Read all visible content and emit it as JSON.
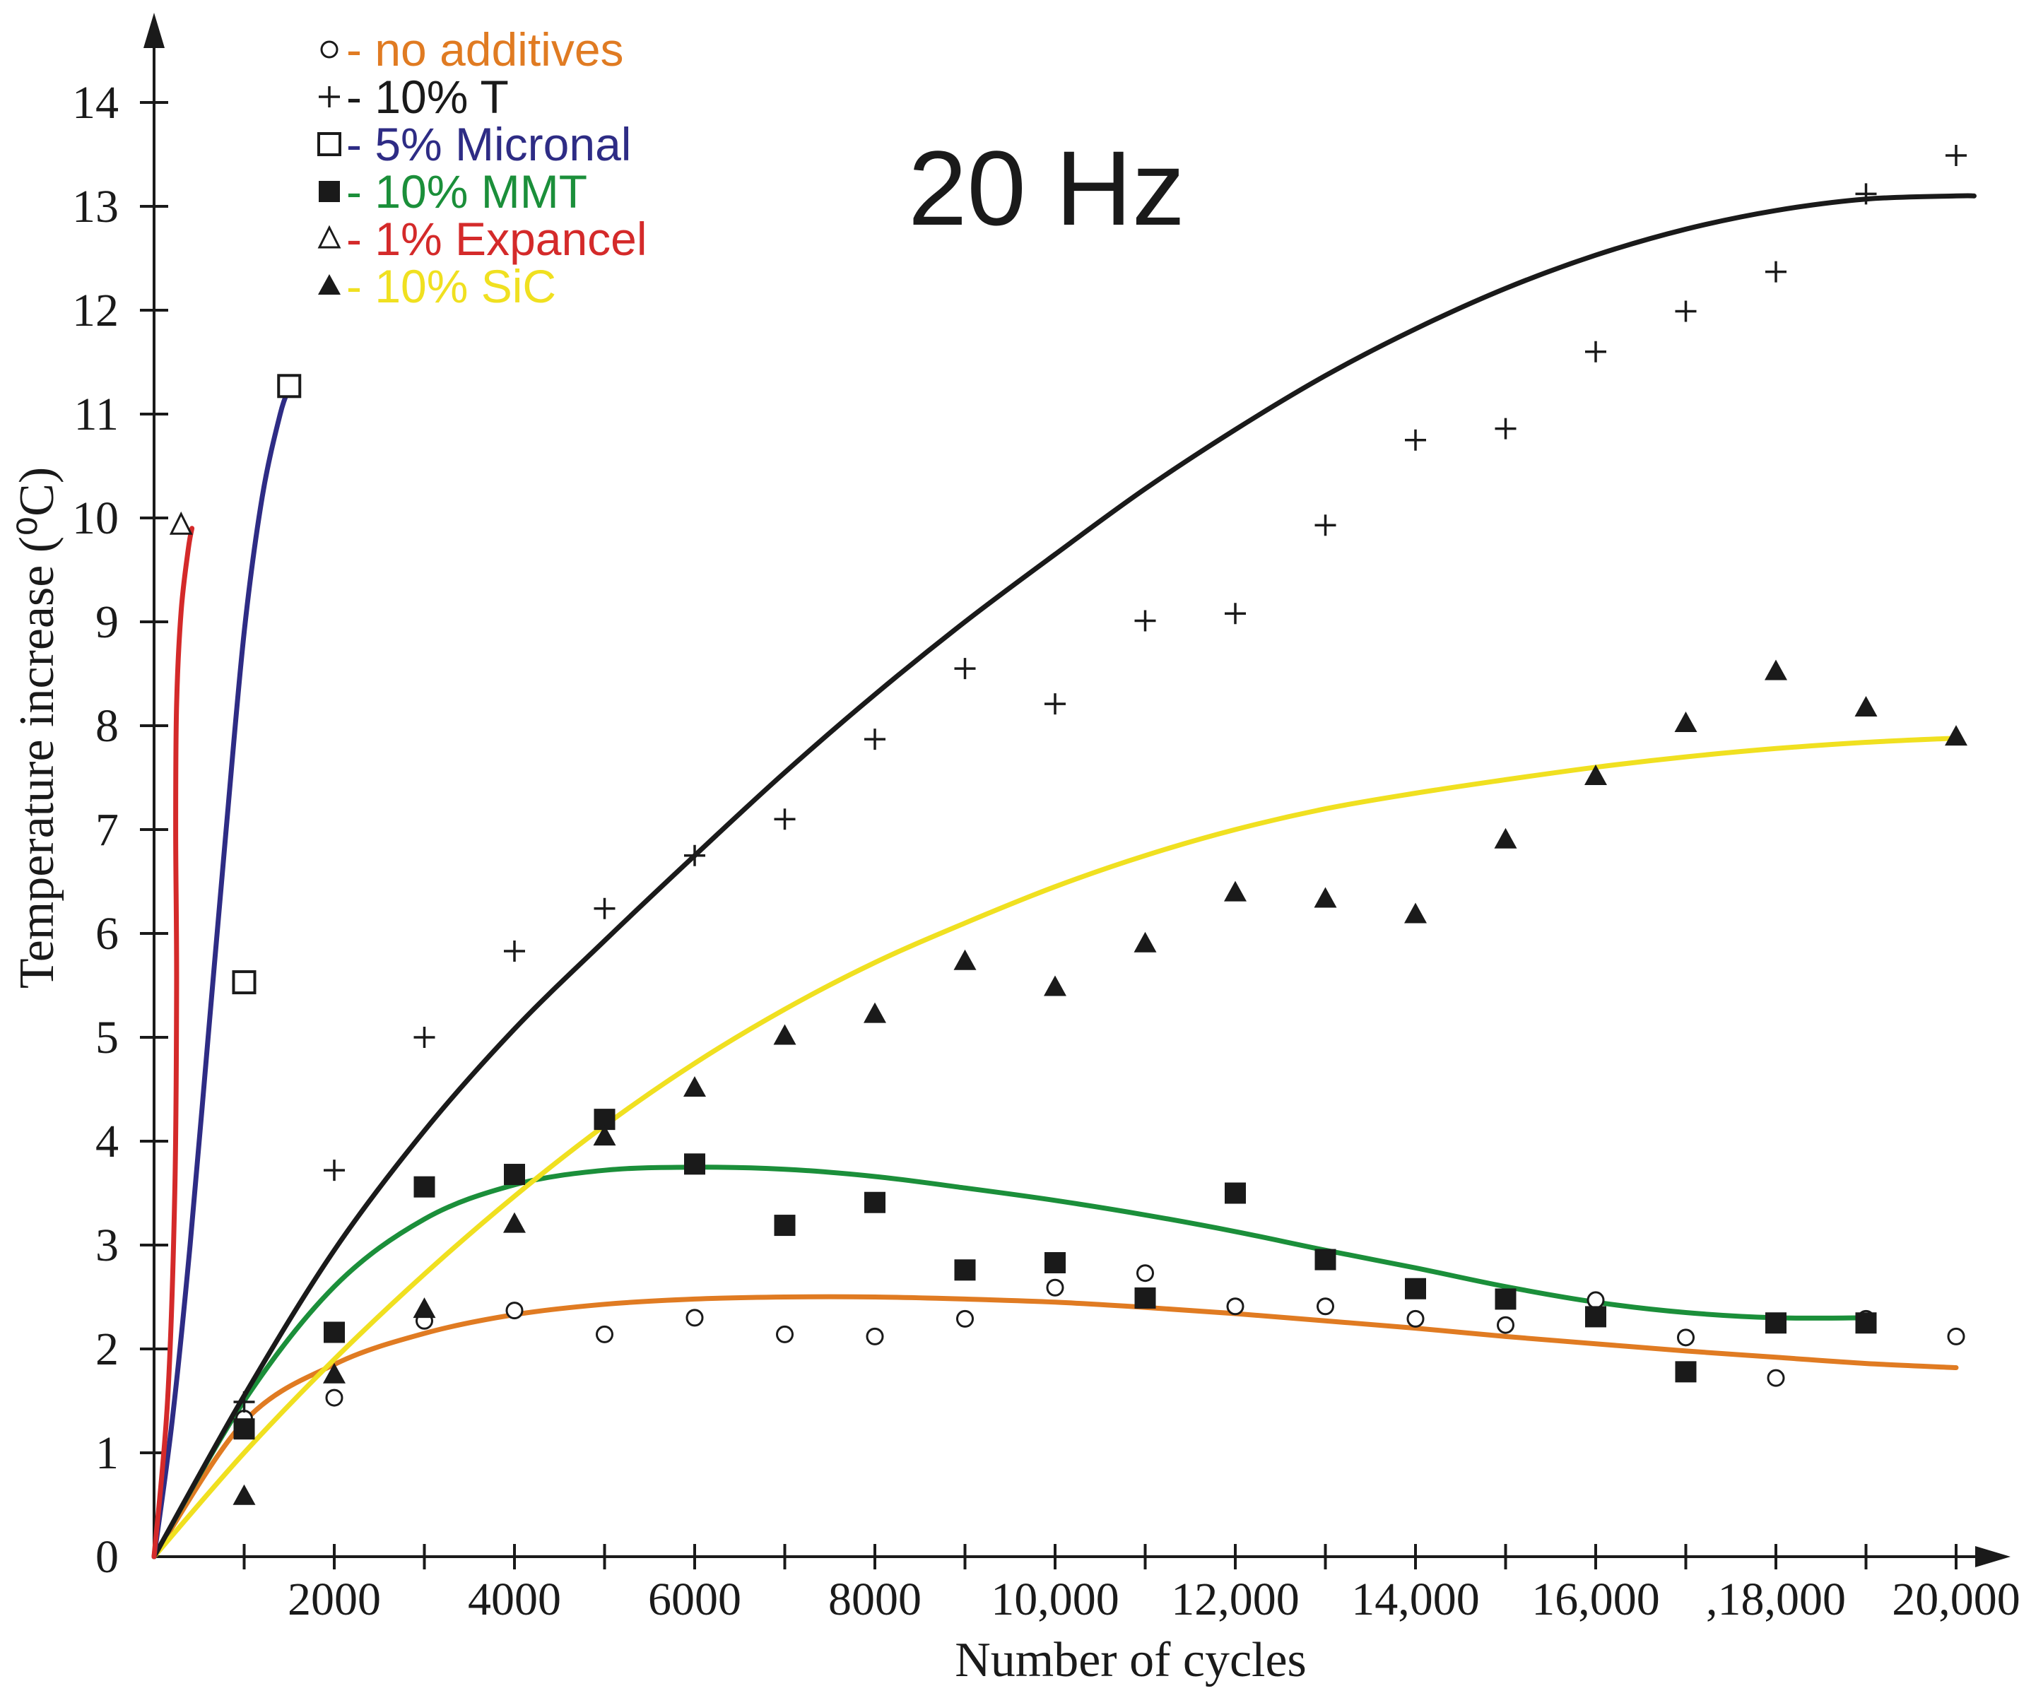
{
  "chart_data": {
    "type": "scatter",
    "title": "20 Hz",
    "xlabel": "Number of cycles",
    "ylabel": "Temperature increase (⁰C)",
    "xlim": [
      0,
      21000
    ],
    "ylim": [
      0,
      15
    ],
    "x_ticks": [
      {
        "value": 2000,
        "label": "2000"
      },
      {
        "value": 4000,
        "label": "4000"
      },
      {
        "value": 6000,
        "label": "6000"
      },
      {
        "value": 8000,
        "label": "8000"
      },
      {
        "value": 10000,
        "label": "10,000"
      },
      {
        "value": 12000,
        "label": "12,000"
      },
      {
        "value": 14000,
        "label": "14,000"
      },
      {
        "value": 16000,
        "label": "16,000"
      },
      {
        "value": 18000,
        "label": ",18,000"
      },
      {
        "value": 20000,
        "label": "20,000"
      }
    ],
    "x_minor_ticks": [
      1000,
      3000,
      5000,
      7000,
      9000,
      11000,
      13000,
      15000,
      17000,
      19000
    ],
    "y_ticks": [
      0,
      1,
      2,
      3,
      4,
      5,
      6,
      7,
      8,
      9,
      10,
      11,
      12,
      13,
      14
    ],
    "legend_position": "top-left",
    "series": [
      {
        "name": "no additives",
        "legend_label": "- no additives",
        "marker": "open-circle",
        "color": "#e07b22",
        "x": [
          1000,
          2000,
          3000,
          4000,
          5000,
          6000,
          7000,
          8000,
          9000,
          10000,
          11000,
          12000,
          13000,
          14000,
          15000,
          16000,
          17000,
          18000,
          19000,
          20000
        ],
        "y": [
          1.33,
          1.53,
          2.27,
          2.37,
          2.14,
          2.3,
          2.14,
          2.12,
          2.29,
          2.59,
          2.73,
          2.41,
          2.41,
          2.29,
          2.23,
          2.47,
          2.11,
          1.72,
          2.29,
          2.12
        ],
        "curve_x": [
          0,
          1000,
          2000,
          3000,
          4000,
          5000,
          6000,
          7000,
          8000,
          9000,
          10000,
          11000,
          12000,
          13000,
          14000,
          15000,
          16000,
          17000,
          18000,
          19000,
          20000
        ],
        "curve_y": [
          0,
          1.3,
          1.85,
          2.15,
          2.33,
          2.43,
          2.48,
          2.5,
          2.5,
          2.48,
          2.45,
          2.4,
          2.34,
          2.27,
          2.2,
          2.12,
          2.05,
          1.98,
          1.92,
          1.86,
          1.82
        ]
      },
      {
        "name": "10% T",
        "legend_label": "- 10% T",
        "marker": "plus",
        "color": "#1a1a1a",
        "x": [
          1000,
          2000,
          3000,
          4000,
          5000,
          6000,
          7000,
          8000,
          9000,
          10000,
          11000,
          12000,
          13000,
          14000,
          15000,
          16000,
          17000,
          18000,
          19000,
          20000
        ],
        "y": [
          1.49,
          3.72,
          5.0,
          5.83,
          6.24,
          6.75,
          7.1,
          7.87,
          8.55,
          8.21,
          9.01,
          9.08,
          9.93,
          10.75,
          10.86,
          11.6,
          11.99,
          12.37,
          13.12,
          13.49
        ],
        "curve_x": [
          0,
          1000,
          2000,
          3000,
          4000,
          5000,
          6000,
          7000,
          8000,
          9000,
          10000,
          11000,
          12000,
          13000,
          14000,
          15000,
          16000,
          17000,
          18000,
          19000,
          20000,
          20200
        ],
        "curve_y": [
          0,
          1.55,
          2.95,
          4.1,
          5.08,
          5.93,
          6.75,
          7.55,
          8.3,
          9.0,
          9.65,
          10.28,
          10.85,
          11.37,
          11.82,
          12.21,
          12.53,
          12.78,
          12.96,
          13.07,
          13.1,
          13.1
        ]
      },
      {
        "name": "5% Micronal",
        "legend_label": "- 5% Micronal",
        "marker": "open-square",
        "color": "#2e2c85",
        "x": [
          1000,
          1500
        ],
        "y": [
          5.53,
          11.27
        ],
        "curve_x": [
          0,
          200,
          400,
          600,
          800,
          1000,
          1200,
          1400,
          1500
        ],
        "curve_y": [
          0,
          1.3,
          3.0,
          5.0,
          7.0,
          8.9,
          10.2,
          11.0,
          11.25
        ]
      },
      {
        "name": "10% MMT",
        "legend_label": "- 10% MMT",
        "marker": "filled-square",
        "color": "#1b8f3a",
        "x": [
          1000,
          2000,
          3000,
          4000,
          5000,
          6000,
          7000,
          8000,
          9000,
          10000,
          11000,
          12000,
          13000,
          14000,
          15000,
          16000,
          17000,
          18000,
          19000
        ],
        "y": [
          1.23,
          2.16,
          3.56,
          3.68,
          4.21,
          3.78,
          3.19,
          3.41,
          2.76,
          2.83,
          2.49,
          3.5,
          2.86,
          2.58,
          2.48,
          2.31,
          1.78,
          2.25,
          2.25
        ],
        "curve_x": [
          0,
          1000,
          2000,
          3000,
          4000,
          5000,
          6000,
          7000,
          8000,
          9000,
          10000,
          11000,
          12000,
          13000,
          14000,
          15000,
          16000,
          17000,
          18000,
          19000
        ],
        "curve_y": [
          0,
          1.5,
          2.6,
          3.25,
          3.58,
          3.72,
          3.75,
          3.73,
          3.66,
          3.55,
          3.43,
          3.29,
          3.13,
          2.95,
          2.78,
          2.6,
          2.45,
          2.35,
          2.3,
          2.3
        ]
      },
      {
        "name": "1% Expancel",
        "legend_label": "- 1% Expancel",
        "marker": "open-triangle",
        "color": "#d42a2a",
        "x": [
          300
        ],
        "y": [
          9.93
        ],
        "curve_x": [
          0,
          150,
          230,
          250,
          240,
          250,
          300,
          380,
          420
        ],
        "curve_y": [
          0,
          1.5,
          3.5,
          5.5,
          7.0,
          8.2,
          9.1,
          9.7,
          9.9
        ]
      },
      {
        "name": "10% SiC",
        "legend_label": "- 10% SiC",
        "marker": "filled-triangle",
        "color": "#f0e020",
        "x": [
          1000,
          2000,
          3000,
          4000,
          5000,
          6000,
          7000,
          8000,
          9000,
          10000,
          11000,
          12000,
          13000,
          14000,
          15000,
          16000,
          17000,
          18000,
          19000,
          20000
        ],
        "y": [
          0.58,
          1.75,
          2.38,
          3.2,
          4.04,
          4.51,
          5.01,
          5.22,
          5.73,
          5.48,
          5.9,
          6.39,
          6.33,
          6.18,
          6.9,
          7.51,
          8.02,
          8.52,
          8.17,
          7.89
        ],
        "curve_x": [
          0,
          1000,
          2000,
          3000,
          4000,
          5000,
          6000,
          7000,
          8000,
          9000,
          10000,
          11000,
          12000,
          13000,
          14000,
          15000,
          16000,
          17000,
          18000,
          19000,
          20000
        ],
        "curve_y": [
          0,
          1.0,
          1.9,
          2.72,
          3.47,
          4.15,
          4.75,
          5.27,
          5.72,
          6.1,
          6.45,
          6.75,
          7.0,
          7.2,
          7.35,
          7.48,
          7.6,
          7.7,
          7.78,
          7.84,
          7.88
        ]
      }
    ]
  }
}
